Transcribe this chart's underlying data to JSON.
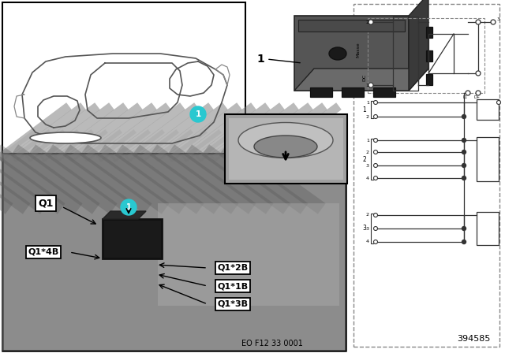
{
  "bg_color": "#ffffff",
  "border_color": "#000000",
  "cyan_color": "#29c8d0",
  "photo_bg": "#909090",
  "photo_bg2": "#a0a0a0",
  "diagram_color": "#333333",
  "dash_color": "#888888",
  "label_box_bg": "#ffffff",
  "car_line_color": "#555555",
  "relay_dark": "#3a3a3a",
  "relay_mid": "#555555",
  "relay_light": "#6a6a6a",
  "labels": {
    "Q1": "Q1",
    "Q1_4B": "Q1*4B",
    "Q1_2B": "Q1*2B",
    "Q1_1B": "Q1*1B",
    "Q1_3B": "Q1*3B",
    "part_num": "1",
    "eo_code": "EO F12 33 0001",
    "part_id": "394585",
    "masse": "Masse",
    "dc": "DC"
  }
}
